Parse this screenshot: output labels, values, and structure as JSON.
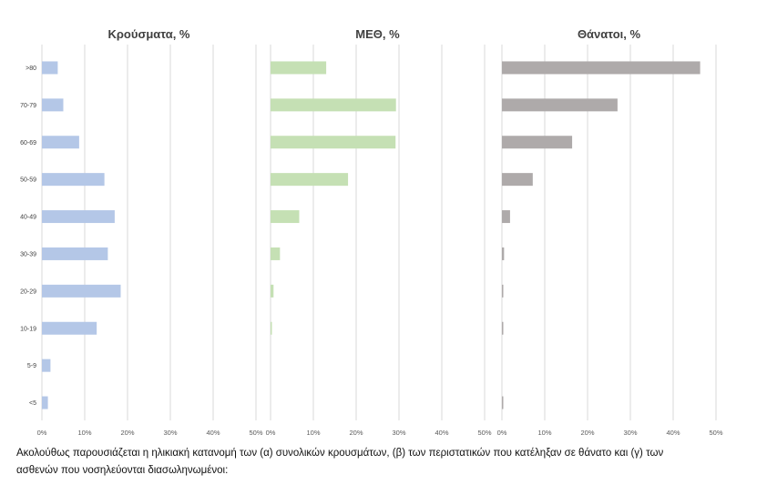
{
  "chart_data": [
    {
      "type": "bar",
      "title": "Κρούσματα, %",
      "categories": [
        ">80",
        "70-79",
        "60-69",
        "50-59",
        "40-49",
        "30-39",
        "20-29",
        "10-19",
        "5-9",
        "<5"
      ],
      "values": [
        3.7,
        5.0,
        8.7,
        14.6,
        17.0,
        15.4,
        18.4,
        12.8,
        2.0,
        1.4
      ],
      "xlim": [
        0,
        50
      ],
      "xticks": [
        "0%",
        "10%",
        "20%",
        "30%",
        "40%",
        "50%"
      ],
      "color": "#b4c7e7",
      "grid": true
    },
    {
      "type": "bar",
      "title": "ΜΕΘ, %",
      "categories": [
        ">80",
        "70-79",
        "60-69",
        "50-59",
        "40-49",
        "30-39",
        "20-29",
        "10-19",
        "5-9",
        "<5"
      ],
      "values": [
        13.0,
        29.3,
        29.2,
        18.1,
        6.7,
        2.2,
        0.7,
        0.3,
        0,
        0
      ],
      "xlim": [
        0,
        50
      ],
      "xticks": [
        "0%",
        "10%",
        "20%",
        "30%",
        "40%",
        "50%"
      ],
      "color": "#c5e0b4",
      "grid": true
    },
    {
      "type": "bar",
      "title": "Θάνατοι, %",
      "categories": [
        ">80",
        "70-79",
        "60-69",
        "50-59",
        "40-49",
        "30-39",
        "20-29",
        "10-19",
        "5-9",
        "<5"
      ],
      "values": [
        46.3,
        27.0,
        16.4,
        7.2,
        1.9,
        0.5,
        0.3,
        0.3,
        0,
        0.3
      ],
      "xlim": [
        0,
        50
      ],
      "xticks": [
        "0%",
        "10%",
        "20%",
        "30%",
        "40%",
        "50%"
      ],
      "color": "#aeaaaa",
      "grid": true
    }
  ],
  "caption": {
    "line1": "Ακολούθως παρουσιάζεται η ηλικιακή κατανομή των (α) συνολικών κρουσμάτων, (β) των περιστατικών που κατέληξαν σε θάνατο και (γ) των",
    "line2": "ασθενών που νοσηλεύονται διασωληνωμένοι:"
  }
}
